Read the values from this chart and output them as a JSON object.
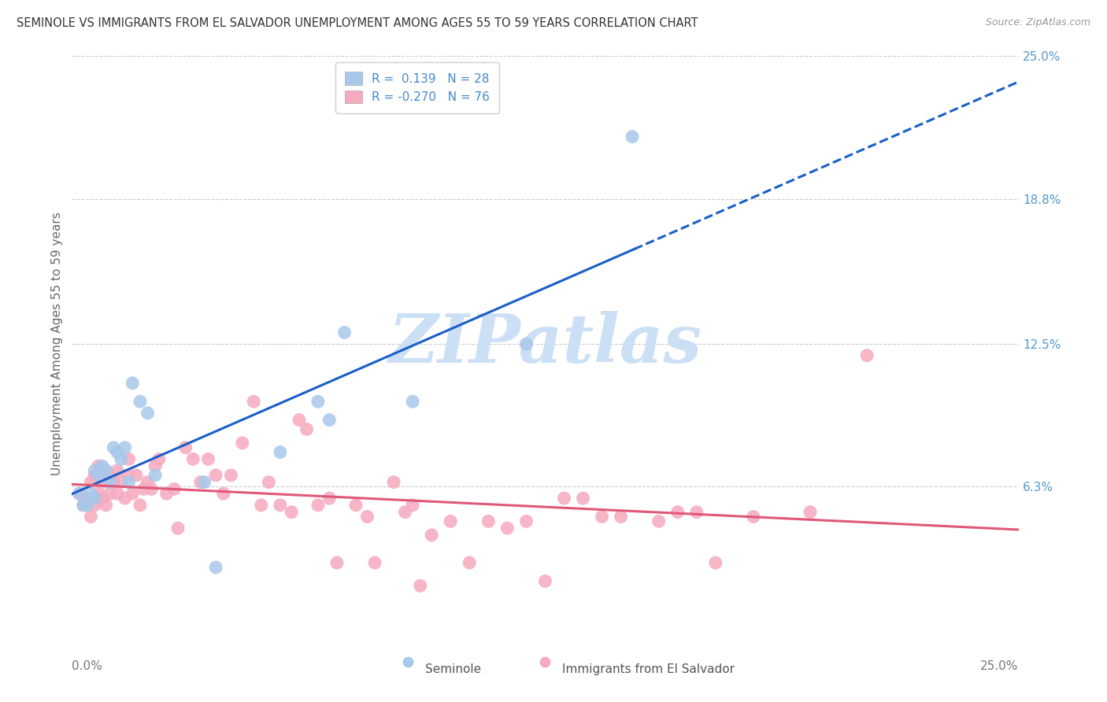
{
  "title": "SEMINOLE VS IMMIGRANTS FROM EL SALVADOR UNEMPLOYMENT AMONG AGES 55 TO 59 YEARS CORRELATION CHART",
  "source": "Source: ZipAtlas.com",
  "ylabel": "Unemployment Among Ages 55 to 59 years",
  "xlim": [
    0.0,
    0.25
  ],
  "ylim": [
    0.0,
    0.25
  ],
  "right_yticks": [
    0.063,
    0.125,
    0.188,
    0.25
  ],
  "right_ytick_labels": [
    "6.3%",
    "12.5%",
    "18.8%",
    "25.0%"
  ],
  "hgrid_vals": [
    0.063,
    0.125,
    0.188,
    0.25
  ],
  "legend1_r": "0.139",
  "legend1_n": "28",
  "legend2_r": "-0.270",
  "legend2_n": "76",
  "seminole_color": "#a8c8ea",
  "salvador_color": "#f5aabf",
  "trendline1_color": "#1a5fc8",
  "trendline2_color": "#e05878",
  "watermark_color": "#cce0f5",
  "seminole_x": [
    0.002,
    0.003,
    0.004,
    0.005,
    0.006,
    0.006,
    0.007,
    0.008,
    0.009,
    0.01,
    0.011,
    0.012,
    0.013,
    0.014,
    0.015,
    0.016,
    0.018,
    0.02,
    0.022,
    0.035,
    0.038,
    0.055,
    0.065,
    0.068,
    0.072,
    0.09,
    0.12,
    0.148
  ],
  "seminole_y": [
    0.06,
    0.055,
    0.055,
    0.06,
    0.058,
    0.07,
    0.068,
    0.072,
    0.07,
    0.065,
    0.08,
    0.078,
    0.075,
    0.08,
    0.065,
    0.108,
    0.1,
    0.095,
    0.068,
    0.065,
    0.028,
    0.078,
    0.1,
    0.092,
    0.13,
    0.1,
    0.125,
    0.215
  ],
  "salvador_x": [
    0.002,
    0.003,
    0.004,
    0.005,
    0.005,
    0.006,
    0.006,
    0.007,
    0.007,
    0.008,
    0.008,
    0.009,
    0.009,
    0.01,
    0.01,
    0.011,
    0.012,
    0.012,
    0.013,
    0.014,
    0.015,
    0.015,
    0.016,
    0.017,
    0.018,
    0.019,
    0.02,
    0.021,
    0.022,
    0.023,
    0.025,
    0.027,
    0.028,
    0.03,
    0.032,
    0.034,
    0.036,
    0.038,
    0.04,
    0.042,
    0.045,
    0.048,
    0.05,
    0.052,
    0.055,
    0.058,
    0.06,
    0.062,
    0.065,
    0.068,
    0.07,
    0.075,
    0.078,
    0.08,
    0.085,
    0.088,
    0.09,
    0.092,
    0.095,
    0.1,
    0.105,
    0.11,
    0.115,
    0.12,
    0.125,
    0.13,
    0.135,
    0.14,
    0.145,
    0.155,
    0.16,
    0.165,
    0.17,
    0.18,
    0.195,
    0.21
  ],
  "salvador_y": [
    0.06,
    0.055,
    0.058,
    0.065,
    0.05,
    0.055,
    0.068,
    0.06,
    0.072,
    0.058,
    0.065,
    0.055,
    0.07,
    0.06,
    0.068,
    0.065,
    0.06,
    0.07,
    0.065,
    0.058,
    0.068,
    0.075,
    0.06,
    0.068,
    0.055,
    0.062,
    0.065,
    0.062,
    0.072,
    0.075,
    0.06,
    0.062,
    0.045,
    0.08,
    0.075,
    0.065,
    0.075,
    0.068,
    0.06,
    0.068,
    0.082,
    0.1,
    0.055,
    0.065,
    0.055,
    0.052,
    0.092,
    0.088,
    0.055,
    0.058,
    0.03,
    0.055,
    0.05,
    0.03,
    0.065,
    0.052,
    0.055,
    0.02,
    0.042,
    0.048,
    0.03,
    0.048,
    0.045,
    0.048,
    0.022,
    0.058,
    0.058,
    0.05,
    0.05,
    0.048,
    0.052,
    0.052,
    0.03,
    0.05,
    0.052,
    0.12
  ]
}
